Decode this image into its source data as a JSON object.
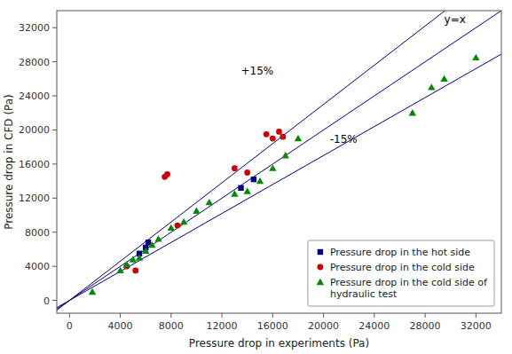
{
  "chart_data": {
    "type": "scatter",
    "xlabel": "Pressure drop in experiments (Pa)",
    "ylabel": "Pressure drop in CFD (Pa)",
    "xlim": [
      -1000,
      34000
    ],
    "ylim": [
      -1500,
      34000
    ],
    "xticks": [
      0,
      4000,
      8000,
      12000,
      16000,
      20000,
      24000,
      28000,
      32000
    ],
    "yticks": [
      0,
      4000,
      8000,
      12000,
      16000,
      20000,
      24000,
      28000,
      32000
    ],
    "grid": false,
    "legend": "lower right",
    "reference_lines": [
      {
        "slope": 1,
        "color": "#00008B"
      },
      {
        "slope": 1.15,
        "color": "#00008B"
      },
      {
        "slope": 0.85,
        "color": "#00008B"
      }
    ],
    "annotations": [
      {
        "text": "y=x",
        "x": 29500,
        "y": 32500
      },
      {
        "text": "+15%",
        "x": 13500,
        "y": 26500
      },
      {
        "text": "-15%",
        "x": 20500,
        "y": 18500
      }
    ],
    "series": [
      {
        "name": "Pressure drop in the hot side",
        "color": "#000080",
        "marker": "square",
        "x": [
          5500,
          6000,
          6200,
          13500,
          14500
        ],
        "values": [
          5500,
          6200,
          6800,
          13200,
          14200
        ]
      },
      {
        "name": "Pressure drop in the cold side",
        "color": "#CC0000",
        "marker": "circle",
        "x": [
          4500,
          5200,
          7500,
          7700,
          8500,
          13000,
          14000,
          15500,
          16000,
          16500,
          16800
        ],
        "values": [
          4000,
          3500,
          14500,
          14800,
          8800,
          15500,
          15000,
          19500,
          19000,
          19800,
          19200
        ]
      },
      {
        "name": "Pressure drop in the cold side of\nhydraulic test",
        "color": "#008800",
        "marker": "triangle",
        "x": [
          1800,
          4000,
          4500,
          5000,
          5500,
          6000,
          6500,
          7000,
          8000,
          9000,
          10000,
          11000,
          13000,
          14000,
          15000,
          16000,
          17000,
          18000,
          27000,
          28500,
          29500,
          32000
        ],
        "values": [
          1000,
          3500,
          4200,
          4800,
          5000,
          5800,
          6500,
          7200,
          8500,
          9200,
          10500,
          11500,
          12500,
          12800,
          14000,
          15500,
          17000,
          19000,
          22000,
          25000,
          26000,
          28500
        ]
      }
    ]
  }
}
